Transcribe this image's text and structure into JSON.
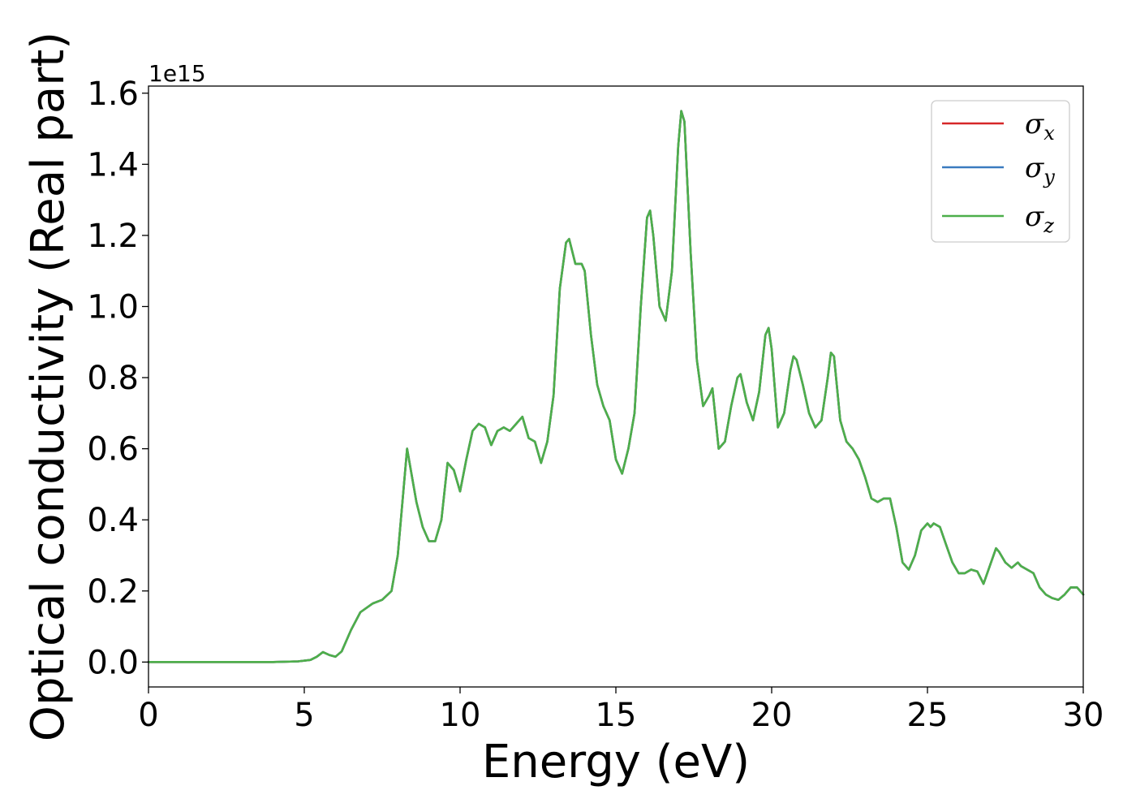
{
  "chart_data": {
    "type": "line",
    "xlabel": "Energy (eV)",
    "ylabel": "Optical conductivity (Real part)",
    "offset_text": "1e15",
    "xlim": [
      0,
      30
    ],
    "ylim": [
      -0.07,
      1.62
    ],
    "x_ticks": [
      "0",
      "5",
      "10",
      "15",
      "20",
      "25",
      "30"
    ],
    "y_ticks": [
      "0.0",
      "0.2",
      "0.4",
      "0.6",
      "0.8",
      "1.0",
      "1.2",
      "1.4",
      "1.6"
    ],
    "legend_position": "upper right",
    "series": [
      {
        "name": "σx",
        "symbol": "σ",
        "subscript": "x",
        "color": "#d62728"
      },
      {
        "name": "σy",
        "symbol": "σ",
        "subscript": "y",
        "color": "#3a7bbf"
      },
      {
        "name": "σz",
        "symbol": "σ",
        "subscript": "z",
        "color": "#4daf4a"
      }
    ],
    "x": [
      0,
      2,
      4,
      4.8,
      5.2,
      5.4,
      5.6,
      5.8,
      6.0,
      6.2,
      6.5,
      6.8,
      7.2,
      7.5,
      7.8,
      8.0,
      8.3,
      8.6,
      8.8,
      9.0,
      9.2,
      9.4,
      9.6,
      9.8,
      10.0,
      10.2,
      10.4,
      10.6,
      10.8,
      11.0,
      11.2,
      11.4,
      11.6,
      11.8,
      12.0,
      12.2,
      12.4,
      12.6,
      12.8,
      13.0,
      13.2,
      13.4,
      13.5,
      13.7,
      13.9,
      14.0,
      14.2,
      14.4,
      14.6,
      14.8,
      15.0,
      15.2,
      15.4,
      15.6,
      15.8,
      16.0,
      16.1,
      16.2,
      16.4,
      16.6,
      16.8,
      17.0,
      17.1,
      17.2,
      17.4,
      17.6,
      17.8,
      18.0,
      18.1,
      18.3,
      18.5,
      18.7,
      18.9,
      19.0,
      19.2,
      19.4,
      19.6,
      19.8,
      19.9,
      20.0,
      20.2,
      20.4,
      20.6,
      20.7,
      20.8,
      21.0,
      21.2,
      21.4,
      21.6,
      21.8,
      21.9,
      22.0,
      22.2,
      22.4,
      22.6,
      22.8,
      23.0,
      23.2,
      23.4,
      23.6,
      23.8,
      24.0,
      24.2,
      24.4,
      24.6,
      24.8,
      25.0,
      25.1,
      25.2,
      25.4,
      25.6,
      25.8,
      26.0,
      26.2,
      26.4,
      26.6,
      26.8,
      27.0,
      27.2,
      27.3,
      27.5,
      27.7,
      27.9,
      28.0,
      28.2,
      28.4,
      28.6,
      28.8,
      29.0,
      29.2,
      29.4,
      29.6,
      29.8,
      30.0
    ],
    "y": [
      0.0,
      0.0,
      0.0,
      0.002,
      0.006,
      0.015,
      0.028,
      0.02,
      0.015,
      0.03,
      0.09,
      0.14,
      0.165,
      0.175,
      0.2,
      0.3,
      0.6,
      0.45,
      0.38,
      0.34,
      0.34,
      0.4,
      0.56,
      0.54,
      0.48,
      0.57,
      0.65,
      0.67,
      0.66,
      0.61,
      0.65,
      0.66,
      0.65,
      0.67,
      0.69,
      0.63,
      0.62,
      0.56,
      0.62,
      0.75,
      1.05,
      1.18,
      1.19,
      1.12,
      1.12,
      1.1,
      0.92,
      0.78,
      0.72,
      0.68,
      0.57,
      0.53,
      0.6,
      0.7,
      1.0,
      1.25,
      1.27,
      1.2,
      1.0,
      0.96,
      1.1,
      1.45,
      1.55,
      1.52,
      1.15,
      0.85,
      0.72,
      0.75,
      0.77,
      0.6,
      0.62,
      0.72,
      0.8,
      0.81,
      0.73,
      0.68,
      0.76,
      0.92,
      0.94,
      0.88,
      0.66,
      0.7,
      0.82,
      0.86,
      0.85,
      0.78,
      0.7,
      0.66,
      0.68,
      0.8,
      0.87,
      0.86,
      0.68,
      0.62,
      0.6,
      0.57,
      0.52,
      0.46,
      0.45,
      0.46,
      0.46,
      0.38,
      0.28,
      0.26,
      0.3,
      0.37,
      0.39,
      0.38,
      0.39,
      0.38,
      0.33,
      0.28,
      0.25,
      0.25,
      0.26,
      0.255,
      0.22,
      0.27,
      0.32,
      0.31,
      0.28,
      0.265,
      0.28,
      0.27,
      0.26,
      0.25,
      0.21,
      0.19,
      0.18,
      0.175,
      0.19,
      0.21,
      0.21,
      0.19
    ]
  }
}
